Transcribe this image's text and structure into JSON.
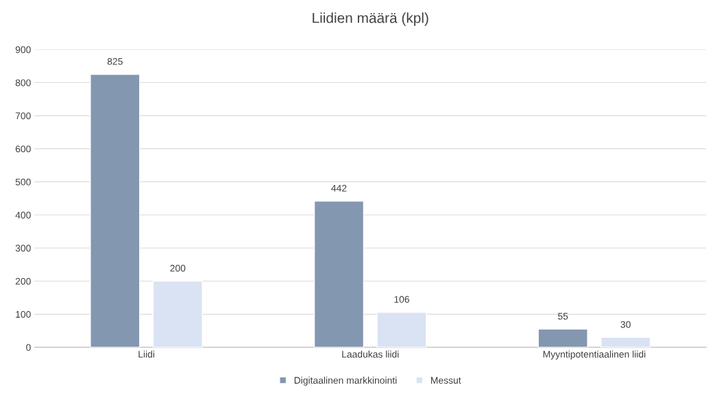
{
  "chart_data": {
    "type": "bar",
    "title": "Liidien määrä (kpl)",
    "categories": [
      "Liidi",
      "Laadukas liidi",
      "Myyntipotentiaalinen liidi"
    ],
    "series": [
      {
        "name": "Digitaalinen markkinointi",
        "color": "#8497b0",
        "values": [
          825,
          442,
          55
        ]
      },
      {
        "name": "Messut",
        "color": "#dae3f3",
        "values": [
          200,
          106,
          30
        ]
      }
    ],
    "ylim": [
      0,
      900
    ],
    "yticks": [
      0,
      100,
      200,
      300,
      400,
      500,
      600,
      700,
      800,
      900
    ],
    "grid": "y",
    "legend": "bottom",
    "data_labels": true
  }
}
